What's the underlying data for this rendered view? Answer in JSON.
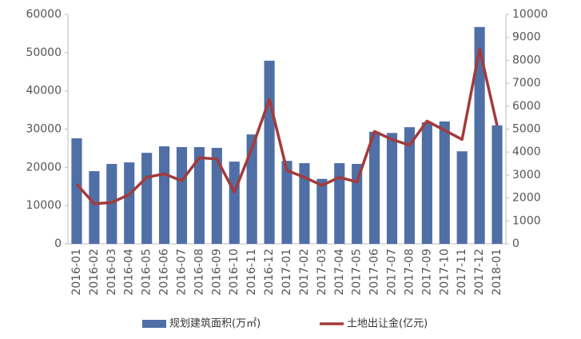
{
  "chart_data": {
    "type": "bar-line",
    "categories": [
      "2016-01",
      "2016-02",
      "2016-03",
      "2016-04",
      "2016-05",
      "2016-06",
      "2016-07",
      "2016-08",
      "2016-09",
      "2016-10",
      "2016-11",
      "2016-12",
      "2017-01",
      "2017-02",
      "2017-03",
      "2017-04",
      "2017-05",
      "2017-06",
      "2017-07",
      "2017-08",
      "2017-09",
      "2017-10",
      "2017-11",
      "2017-12",
      "2018-01"
    ],
    "series": [
      {
        "name": "规划建筑面积(万㎡)",
        "type": "bar",
        "color": "#4f6fa6",
        "values": [
          27600,
          19000,
          20900,
          21300,
          23800,
          25500,
          25300,
          25300,
          25100,
          21500,
          28600,
          47900,
          21700,
          21100,
          17000,
          21100,
          20900,
          29300,
          29000,
          30500,
          31800,
          32000,
          24200,
          56700,
          31000
        ]
      },
      {
        "name": "土地出让金(亿元)",
        "type": "line",
        "axis": "y2",
        "color": "#a33b3b",
        "values": [
          2600,
          1750,
          1800,
          2150,
          2900,
          3050,
          2750,
          3750,
          3700,
          2250,
          4150,
          6300,
          3200,
          2900,
          2550,
          2900,
          2700,
          4900,
          4550,
          4300,
          5350,
          4950,
          4550,
          8500,
          5150
        ]
      }
    ],
    "ylim": [
      0,
      60000
    ],
    "yticks": [
      0,
      10000,
      20000,
      30000,
      40000,
      50000,
      60000
    ],
    "y2lim": [
      0,
      10000
    ],
    "y2ticks": [
      0,
      1000,
      2000,
      3000,
      4000,
      5000,
      6000,
      7000,
      8000,
      9000,
      10000
    ],
    "legend": "bottom"
  }
}
